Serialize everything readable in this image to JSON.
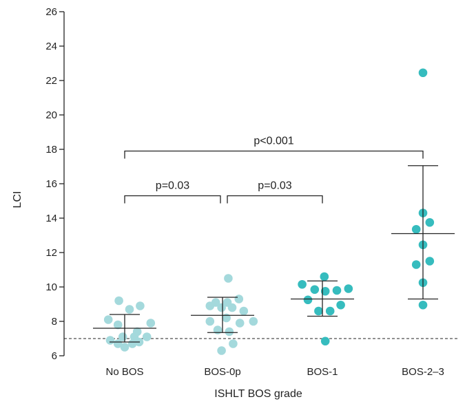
{
  "chart_data": {
    "type": "scatter",
    "xlabel": "ISHLT BOS grade",
    "ylabel": "LCI",
    "ylim": [
      6,
      26
    ],
    "yticks": [
      6,
      8,
      10,
      12,
      14,
      16,
      18,
      20,
      22,
      24,
      26
    ],
    "categories": [
      "No BOS",
      "BOS-0p",
      "BOS-1",
      "BOS-2–3"
    ],
    "reference_line": {
      "y": 7.0,
      "style": "dashed"
    },
    "groups": [
      {
        "category": "No BOS",
        "color": "#a4d9dc",
        "mean": 7.6,
        "sd_low": 6.8,
        "sd_high": 8.4,
        "points": [
          {
            "offset": -0.17,
            "y": 8.1
          },
          {
            "offset": -0.06,
            "y": 9.2
          },
          {
            "offset": 0.16,
            "y": 8.9
          },
          {
            "offset": 0.05,
            "y": 8.7
          },
          {
            "offset": -0.07,
            "y": 7.8
          },
          {
            "offset": 0.27,
            "y": 7.9
          },
          {
            "offset": 0.13,
            "y": 7.4
          },
          {
            "offset": 0.23,
            "y": 7.1
          },
          {
            "offset": -0.15,
            "y": 6.9
          },
          {
            "offset": -0.02,
            "y": 7.1
          },
          {
            "offset": 0.1,
            "y": 7.1
          },
          {
            "offset": -0.07,
            "y": 6.7
          },
          {
            "offset": 0.15,
            "y": 6.8
          },
          {
            "offset": 0.0,
            "y": 6.5
          },
          {
            "offset": 0.08,
            "y": 6.7
          }
        ]
      },
      {
        "category": "BOS-0p",
        "color": "#a4d9dc",
        "mean": 8.35,
        "sd_low": 7.35,
        "sd_high": 9.4,
        "points": [
          {
            "offset": 0.06,
            "y": 10.5
          },
          {
            "offset": 0.17,
            "y": 9.3
          },
          {
            "offset": 0.05,
            "y": 9.1
          },
          {
            "offset": -0.13,
            "y": 8.9
          },
          {
            "offset": -0.07,
            "y": 9.1
          },
          {
            "offset": -0.01,
            "y": 8.8
          },
          {
            "offset": 0.1,
            "y": 8.8
          },
          {
            "offset": 0.04,
            "y": 8.2
          },
          {
            "offset": 0.22,
            "y": 8.6
          },
          {
            "offset": -0.13,
            "y": 8.0
          },
          {
            "offset": 0.18,
            "y": 7.9
          },
          {
            "offset": 0.32,
            "y": 8.0
          },
          {
            "offset": -0.05,
            "y": 7.5
          },
          {
            "offset": 0.07,
            "y": 7.4
          },
          {
            "offset": 0.11,
            "y": 6.7
          },
          {
            "offset": -0.01,
            "y": 6.3
          }
        ]
      },
      {
        "category": "BOS-1",
        "color": "#36bcbe",
        "mean": 9.3,
        "sd_low": 8.3,
        "sd_high": 10.35,
        "points": [
          {
            "offset": 0.02,
            "y": 10.6
          },
          {
            "offset": -0.21,
            "y": 10.15
          },
          {
            "offset": -0.08,
            "y": 9.85
          },
          {
            "offset": 0.03,
            "y": 9.75
          },
          {
            "offset": 0.15,
            "y": 9.8
          },
          {
            "offset": 0.27,
            "y": 9.9
          },
          {
            "offset": -0.15,
            "y": 9.25
          },
          {
            "offset": 0.19,
            "y": 8.95
          },
          {
            "offset": -0.04,
            "y": 8.6
          },
          {
            "offset": 0.08,
            "y": 8.6
          },
          {
            "offset": 0.03,
            "y": 6.85
          }
        ]
      },
      {
        "category": "BOS-2–3",
        "color": "#36bcbe",
        "mean": 13.1,
        "sd_low": 9.3,
        "sd_high": 17.05,
        "points": [
          {
            "offset": 0.0,
            "y": 22.45
          },
          {
            "offset": 0.0,
            "y": 14.3
          },
          {
            "offset": -0.07,
            "y": 13.35
          },
          {
            "offset": 0.07,
            "y": 13.75
          },
          {
            "offset": 0.0,
            "y": 12.45
          },
          {
            "offset": -0.07,
            "y": 11.3
          },
          {
            "offset": 0.07,
            "y": 11.5
          },
          {
            "offset": 0.0,
            "y": 10.25
          },
          {
            "offset": 0.0,
            "y": 8.95
          }
        ]
      }
    ],
    "annotations": [
      {
        "from": "No BOS",
        "to": "BOS-2–3",
        "bracket_y": 17.9,
        "text": "p<0.001"
      },
      {
        "from": "No BOS",
        "to": "BOS-0p",
        "bracket_y": 15.3,
        "text": "p=0.03"
      },
      {
        "from": "BOS-0p",
        "to": "BOS-1",
        "bracket_y": 15.3,
        "text": "p=0.03"
      }
    ]
  }
}
